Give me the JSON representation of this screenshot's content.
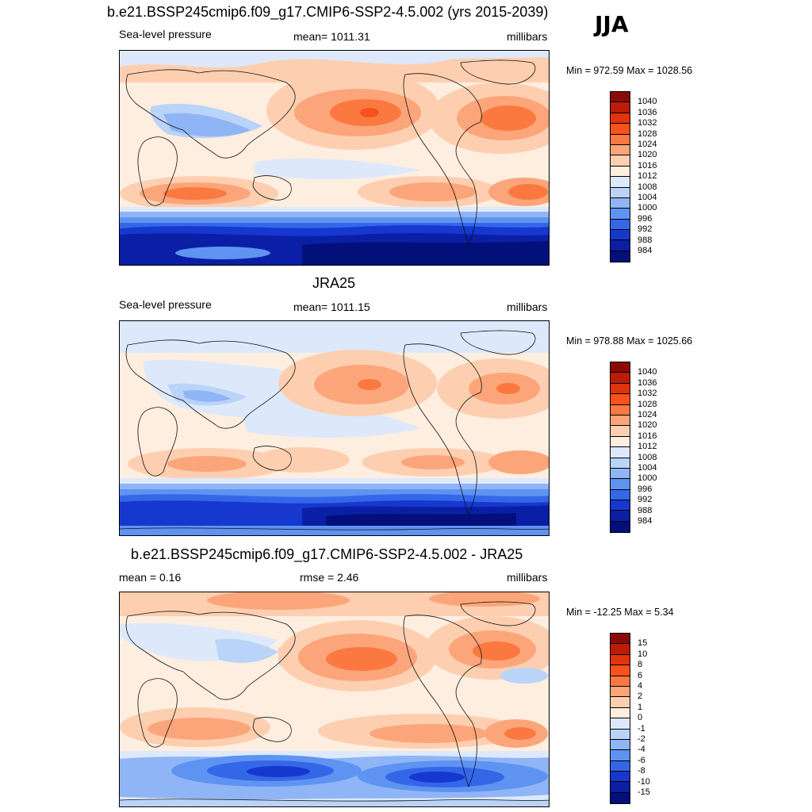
{
  "season": "JJA",
  "panels": [
    {
      "title": "b.e21.BSSP245cmip6.f09_g17.CMIP6-SSP2-4.5.002 (yrs 2015-2039)",
      "left": "Sea-level pressure",
      "center": "mean= 1011.31",
      "right": "millibars",
      "minmax": "Min = 972.59 Max = 1028.56"
    },
    {
      "title": "JRA25",
      "left": "Sea-level pressure",
      "center": "mean= 1011.15",
      "right": "millibars",
      "minmax": "Min = 978.88 Max = 1025.66"
    },
    {
      "title": "b.e21.BSSP245cmip6.f09_g17.CMIP6-SSP2-4.5.002 - JRA25",
      "left": "mean =   0.16",
      "center": "rmse =   2.46",
      "right": "millibars",
      "minmax": "Min = -12.25 Max =   5.34"
    }
  ],
  "colorbar_abs": {
    "labels": [
      "1040",
      "1036",
      "1032",
      "1028",
      "1024",
      "1020",
      "1016",
      "1012",
      "1008",
      "1004",
      "1000",
      "996",
      "992",
      "988",
      "984"
    ],
    "colors": [
      "#8b0a07",
      "#bb1c0a",
      "#e0340c",
      "#f5521c",
      "#fb7940",
      "#fca57a",
      "#fdcfb0",
      "#fdeee0",
      "#dde9fb",
      "#bad3f8",
      "#8fb5f6",
      "#5f93f2",
      "#3467e8",
      "#1638cf",
      "#0a1fa5",
      "#030f7a"
    ]
  },
  "colorbar_diff": {
    "labels": [
      "15",
      "10",
      "8",
      "6",
      "4",
      "2",
      "1",
      "0",
      "-1",
      "-2",
      "-4",
      "-6",
      "-8",
      "-10",
      "-15"
    ],
    "colors": [
      "#8b0a07",
      "#bb1c0a",
      "#e0340c",
      "#f5521c",
      "#fb7940",
      "#fca57a",
      "#fdcfb0",
      "#fdeee0",
      "#dde9fb",
      "#bad3f8",
      "#8fb5f6",
      "#5f93f2",
      "#3467e8",
      "#1638cf",
      "#0a1fa5",
      "#030f7a"
    ]
  }
}
